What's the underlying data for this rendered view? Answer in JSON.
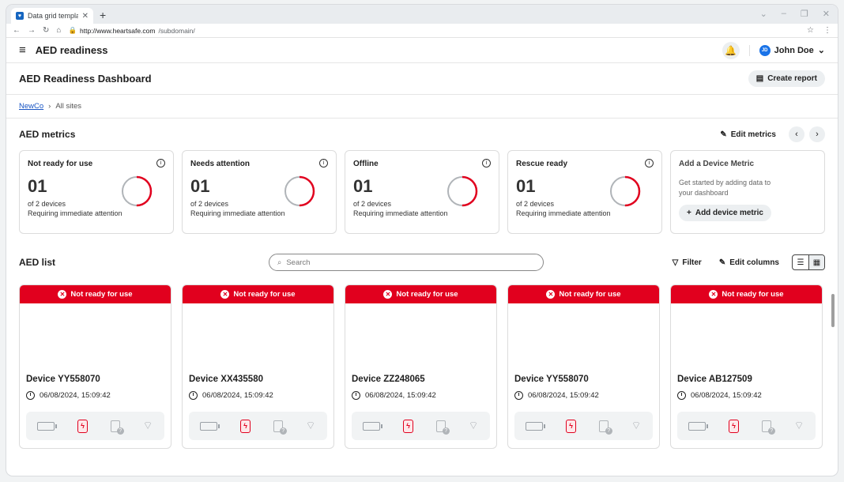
{
  "browser": {
    "tab_title": "Data grid template",
    "url_host": "http://www.heartsafe.com",
    "url_path": "/subdomain/"
  },
  "app": {
    "title": "AED readiness",
    "user": {
      "name": "John Doe",
      "initials": "JD"
    }
  },
  "page": {
    "title": "AED Readiness Dashboard",
    "create_report_label": "Create report"
  },
  "breadcrumb": {
    "root": "NewCo",
    "current": "All sites"
  },
  "metrics_section": {
    "title": "AED metrics",
    "edit_label": "Edit metrics",
    "cards": [
      {
        "title": "Not ready for use",
        "value": "01",
        "sub": "of 2 devices",
        "desc": "Requiring immediate attention",
        "fraction": 0.5
      },
      {
        "title": "Needs attention",
        "value": "01",
        "sub": "of 2 devices",
        "desc": "Requiring immediate attention",
        "fraction": 0.5
      },
      {
        "title": "Offline",
        "value": "01",
        "sub": "of 2 devices",
        "desc": "Requiring immediate attention",
        "fraction": 0.5
      },
      {
        "title": "Rescue ready",
        "value": "01",
        "sub": "of 2 devices",
        "desc": "Requiring immediate attention",
        "fraction": 0.5
      }
    ],
    "add_card": {
      "title": "Add a Device Metric",
      "help": "Get started by adding data to your dashboard",
      "button_label": "Add device metric"
    }
  },
  "list_section": {
    "title": "AED list",
    "search_placeholder": "Search",
    "filter_label": "Filter",
    "edit_columns_label": "Edit columns",
    "devices": [
      {
        "status": "Not ready for use",
        "name": "Device YY558070",
        "time": "06/08/2024, 15:09:42"
      },
      {
        "status": "Not ready for use",
        "name": "Device XX435580",
        "time": "06/08/2024, 15:09:42"
      },
      {
        "status": "Not ready for use",
        "name": "Device ZZ248065",
        "time": "06/08/2024, 15:09:42"
      },
      {
        "status": "Not ready for use",
        "name": "Device YY558070",
        "time": "06/08/2024, 15:09:42"
      },
      {
        "status": "Not ready for use",
        "name": "Device AB127509",
        "time": "06/08/2024, 15:09:42"
      }
    ]
  },
  "colors": {
    "alert_red": "#e1001e",
    "battery_green": "#1fb534",
    "ring_gray": "#b0b4b8",
    "link_blue": "#1a56c4"
  }
}
